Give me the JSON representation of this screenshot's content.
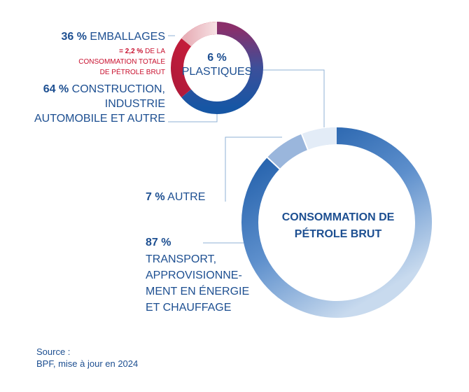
{
  "chart_data": [
    {
      "type": "pie",
      "donut": true,
      "center_label": "CONSOMMATION DE PÉTROLE BRUT",
      "slices": [
        {
          "value": 87,
          "label": "87 %",
          "text": "TRANSPORT, APPROVISIONNE-MENT EN ÉNERGIE ET CHAUFFAGE",
          "color": "#1f5ba7"
        },
        {
          "value": 7,
          "label": "7 %",
          "text": "AUTRE",
          "color": "#cfdff0"
        },
        {
          "value": 6,
          "label": "6 %",
          "text": "",
          "color": "#3a6fb5"
        }
      ]
    },
    {
      "type": "pie",
      "donut": true,
      "center_label": {
        "pct": "6 %",
        "text": "PLASTIQUES"
      },
      "slices": [
        {
          "value": 36,
          "label": "36 %",
          "text": "EMBALLAGES",
          "color": "#c8102e"
        },
        {
          "value": 64,
          "label": "64 %",
          "text": "CONSTRUCTION, INDUSTRIE AUTOMOBILE ET AUTRE",
          "color": "#1f5ba7"
        }
      ],
      "note": {
        "pct": "= 2,2 %",
        "text": "DE LA CONSOMMATION TOTALE DE PÉTROLE BRUT"
      }
    }
  ],
  "source": {
    "line1": "Source :",
    "line2": "BPF, mise à jour en 2024"
  }
}
